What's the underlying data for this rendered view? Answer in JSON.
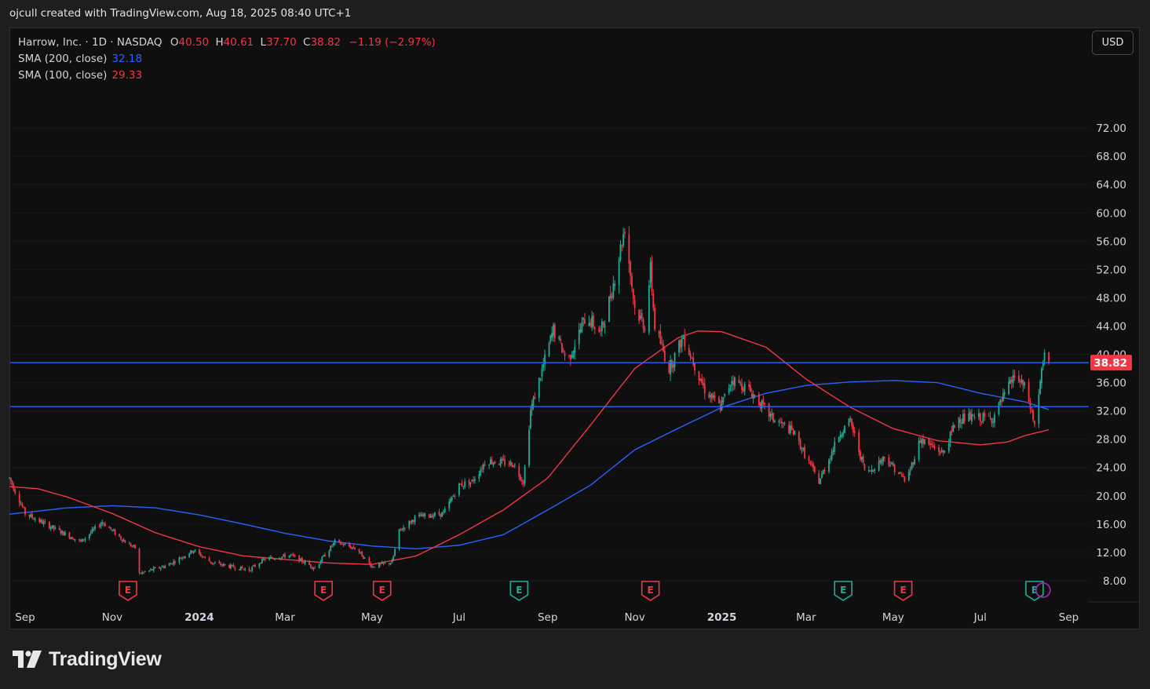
{
  "attribution": "ojcull created with TradingView.com, Aug 18, 2025 08:40 UTC+1",
  "brand": {
    "name": "TradingView"
  },
  "currency_button": "USD",
  "legend": {
    "symbol": "Harrow, Inc. · 1D · NASDAQ",
    "o_label": "O",
    "o_value": "40.50",
    "h_label": "H",
    "h_value": "40.61",
    "l_label": "L",
    "l_value": "37.70",
    "c_label": "C",
    "c_value": "38.82",
    "change": "−1.19 (−2.97%)",
    "sma200_label": "SMA (200, close)",
    "sma200_value": "32.18",
    "sma100_label": "SMA (100, close)",
    "sma100_value": "29.33"
  },
  "colors": {
    "up": "#22ab94",
    "down": "#f23645",
    "sma200": "#2962ff",
    "sma100": "#f23645",
    "hline": "#2962ff",
    "grid": "#2a2a2a",
    "axis_text": "#d1d4dc"
  },
  "chart_data": {
    "type": "candlestick",
    "interval": "1D",
    "exchange": "NASDAQ",
    "x_range": [
      "2023-08-21",
      "2025-09-15"
    ],
    "y_range": [
      5,
      79
    ],
    "y_ticks": [
      "8.00",
      "12.00",
      "16.00",
      "20.00",
      "24.00",
      "28.00",
      "32.00",
      "36.00",
      "40.00",
      "44.00",
      "48.00",
      "52.00",
      "56.00",
      "60.00",
      "64.00",
      "68.00",
      "72.00"
    ],
    "x_ticks": [
      {
        "label": "Sep",
        "date": "2023-09-01",
        "bold": false
      },
      {
        "label": "Nov",
        "date": "2023-11-01",
        "bold": false
      },
      {
        "label": "2024",
        "date": "2024-01-01",
        "bold": true
      },
      {
        "label": "Mar",
        "date": "2024-03-01",
        "bold": false
      },
      {
        "label": "May",
        "date": "2024-05-01",
        "bold": false
      },
      {
        "label": "Jul",
        "date": "2024-07-01",
        "bold": false
      },
      {
        "label": "Sep",
        "date": "2024-09-01",
        "bold": false
      },
      {
        "label": "Nov",
        "date": "2024-11-01",
        "bold": false
      },
      {
        "label": "2025",
        "date": "2025-01-01",
        "bold": true
      },
      {
        "label": "Mar",
        "date": "2025-03-01",
        "bold": false
      },
      {
        "label": "May",
        "date": "2025-05-01",
        "bold": false
      },
      {
        "label": "Jul",
        "date": "2025-07-01",
        "bold": false
      },
      {
        "label": "Sep",
        "date": "2025-09-01",
        "bold": false
      }
    ],
    "last_price": "38.82",
    "horizontal_lines": [
      38.82,
      32.6
    ],
    "price_path": [
      [
        "2023-08-21",
        22.5
      ],
      [
        "2023-09-01",
        17.5
      ],
      [
        "2023-09-20",
        15.5
      ],
      [
        "2023-10-10",
        13.5
      ],
      [
        "2023-10-25",
        16.3
      ],
      [
        "2023-11-10",
        13.5
      ],
      [
        "2023-11-18",
        12.5
      ],
      [
        "2023-11-20",
        9.0
      ],
      [
        "2023-12-10",
        10.2
      ],
      [
        "2023-12-28",
        12.3
      ],
      [
        "2024-01-10",
        10.5
      ],
      [
        "2024-02-05",
        9.5
      ],
      [
        "2024-02-15",
        11.0
      ],
      [
        "2024-03-05",
        11.6
      ],
      [
        "2024-03-22",
        9.8
      ],
      [
        "2024-04-05",
        13.5
      ],
      [
        "2024-04-20",
        12.5
      ],
      [
        "2024-05-01",
        10.0
      ],
      [
        "2024-05-15",
        10.6
      ],
      [
        "2024-05-20",
        15.0
      ],
      [
        "2024-06-01",
        17.0
      ],
      [
        "2024-06-20",
        17.5
      ],
      [
        "2024-07-01",
        21.5
      ],
      [
        "2024-07-10",
        22.0
      ],
      [
        "2024-07-20",
        25.0
      ],
      [
        "2024-08-08",
        24.5
      ],
      [
        "2024-08-15",
        22.0
      ],
      [
        "2024-08-20",
        32.0
      ],
      [
        "2024-09-05",
        43.5
      ],
      [
        "2024-09-15",
        39.0
      ],
      [
        "2024-09-28",
        45.5
      ],
      [
        "2024-10-08",
        43.0
      ],
      [
        "2024-10-16",
        49.0
      ],
      [
        "2024-10-25",
        58.0
      ],
      [
        "2024-11-01",
        46.5
      ],
      [
        "2024-11-08",
        44.0
      ],
      [
        "2024-11-12",
        52.0
      ],
      [
        "2024-11-15",
        44.0
      ],
      [
        "2024-11-25",
        38.0
      ],
      [
        "2024-12-05",
        42.5
      ],
      [
        "2024-12-20",
        35.0
      ],
      [
        "2024-12-31",
        32.5
      ],
      [
        "2025-01-08",
        36.5
      ],
      [
        "2025-01-20",
        35.0
      ],
      [
        "2025-02-05",
        31.0
      ],
      [
        "2025-02-20",
        29.0
      ],
      [
        "2025-03-10",
        22.0
      ],
      [
        "2025-03-25",
        29.0
      ],
      [
        "2025-04-01",
        30.5
      ],
      [
        "2025-04-12",
        23.0
      ],
      [
        "2025-04-25",
        25.5
      ],
      [
        "2025-05-10",
        22.0
      ],
      [
        "2025-05-20",
        28.0
      ],
      [
        "2025-06-05",
        26.0
      ],
      [
        "2025-06-15",
        31.0
      ],
      [
        "2025-06-25",
        31.0
      ],
      [
        "2025-07-10",
        31.0
      ],
      [
        "2025-07-25",
        37.0
      ],
      [
        "2025-08-02",
        35.0
      ],
      [
        "2025-08-08",
        30.0
      ],
      [
        "2025-08-12",
        36.0
      ],
      [
        "2025-08-15",
        40.0
      ],
      [
        "2025-08-18",
        38.82
      ]
    ],
    "sma100_path": [
      [
        "2023-08-21",
        21.3
      ],
      [
        "2023-09-10",
        21.0
      ],
      [
        "2023-10-01",
        19.8
      ],
      [
        "2023-11-01",
        17.5
      ],
      [
        "2023-12-01",
        14.8
      ],
      [
        "2024-01-01",
        12.8
      ],
      [
        "2024-02-01",
        11.5
      ],
      [
        "2024-03-01",
        11.0
      ],
      [
        "2024-04-01",
        10.5
      ],
      [
        "2024-05-01",
        10.3
      ],
      [
        "2024-06-01",
        11.5
      ],
      [
        "2024-07-01",
        14.5
      ],
      [
        "2024-08-01",
        18.0
      ],
      [
        "2024-09-01",
        22.5
      ],
      [
        "2024-10-01",
        30.0
      ],
      [
        "2024-11-01",
        38.0
      ],
      [
        "2024-12-01",
        42.3
      ],
      [
        "2024-12-15",
        43.3
      ],
      [
        "2025-01-01",
        43.2
      ],
      [
        "2025-02-01",
        41.0
      ],
      [
        "2025-03-01",
        36.5
      ],
      [
        "2025-04-01",
        32.5
      ],
      [
        "2025-05-01",
        29.5
      ],
      [
        "2025-06-01",
        27.8
      ],
      [
        "2025-07-01",
        27.2
      ],
      [
        "2025-07-20",
        27.6
      ],
      [
        "2025-08-01",
        28.5
      ],
      [
        "2025-08-18",
        29.33
      ]
    ],
    "sma200_path": [
      [
        "2023-08-21",
        17.4
      ],
      [
        "2023-10-01",
        18.3
      ],
      [
        "2023-11-01",
        18.6
      ],
      [
        "2023-12-01",
        18.3
      ],
      [
        "2024-01-01",
        17.3
      ],
      [
        "2024-02-01",
        16.0
      ],
      [
        "2024-03-01",
        14.7
      ],
      [
        "2024-04-01",
        13.6
      ],
      [
        "2024-05-01",
        12.9
      ],
      [
        "2024-06-01",
        12.5
      ],
      [
        "2024-07-01",
        13.0
      ],
      [
        "2024-08-01",
        14.5
      ],
      [
        "2024-09-01",
        18.0
      ],
      [
        "2024-10-01",
        21.5
      ],
      [
        "2024-11-01",
        26.5
      ],
      [
        "2024-12-01",
        29.5
      ],
      [
        "2025-01-01",
        32.5
      ],
      [
        "2025-02-01",
        34.5
      ],
      [
        "2025-03-01",
        35.6
      ],
      [
        "2025-04-01",
        36.1
      ],
      [
        "2025-05-01",
        36.3
      ],
      [
        "2025-06-01",
        36.0
      ],
      [
        "2025-07-01",
        34.5
      ],
      [
        "2025-08-01",
        33.3
      ],
      [
        "2025-08-18",
        32.18
      ]
    ],
    "earnings_markers": [
      {
        "date": "2023-11-12",
        "color": "down",
        "label": "E"
      },
      {
        "date": "2024-03-28",
        "color": "down",
        "label": "E"
      },
      {
        "date": "2024-05-08",
        "color": "down",
        "label": "E"
      },
      {
        "date": "2024-08-12",
        "color": "up",
        "label": "E"
      },
      {
        "date": "2024-11-12",
        "color": "down",
        "label": "E"
      },
      {
        "date": "2025-03-27",
        "color": "up",
        "label": "E"
      },
      {
        "date": "2025-05-08",
        "color": "down",
        "label": "E"
      },
      {
        "date": "2025-08-08",
        "color": "up",
        "label": "E"
      },
      {
        "date": "2025-08-14",
        "color": "purple",
        "label": "",
        "upcoming": true
      }
    ]
  }
}
